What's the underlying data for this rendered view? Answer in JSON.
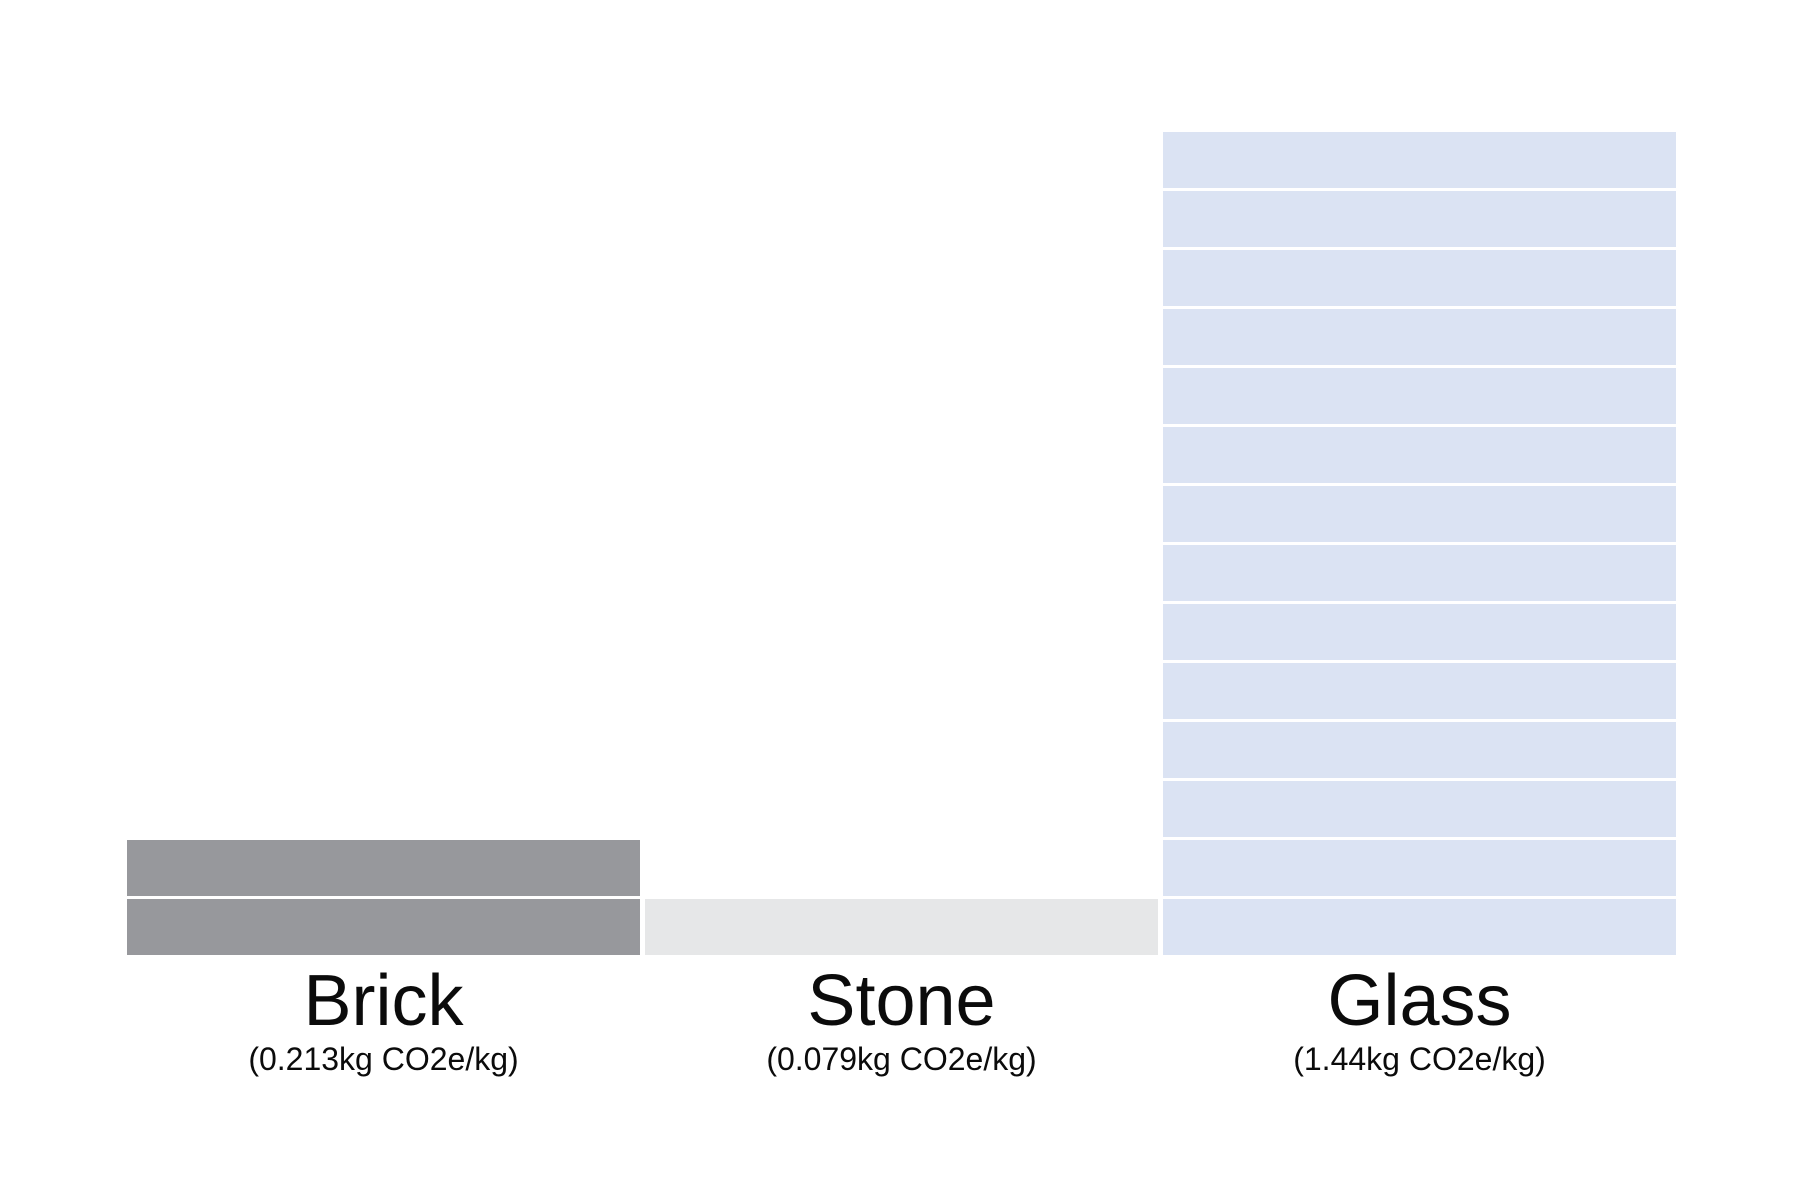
{
  "chart_data": {
    "type": "bar",
    "title": "",
    "xlabel": "",
    "ylabel": "",
    "unit": "kg CO2e/kg",
    "categories": [
      "Brick",
      "Stone",
      "Glass"
    ],
    "value_labels": [
      "(0.213kg CO2e/kg)",
      "(0.079kg CO2e/kg)",
      "(1.44kg CO2e/kg)"
    ],
    "values": [
      0.213,
      0.079,
      1.44
    ],
    "block_counts": [
      2,
      1,
      14
    ],
    "colors": [
      "#97989c",
      "#e6e7e8",
      "#dbe3f3"
    ],
    "grid": false,
    "legend": "none"
  }
}
